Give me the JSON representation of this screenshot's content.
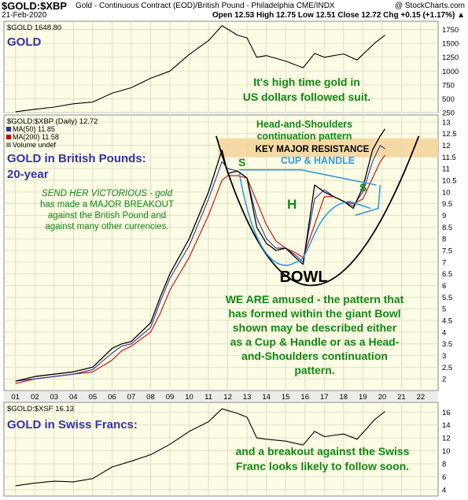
{
  "header": {
    "title": "$GOLD:$XBP",
    "description": "Gold - Continuous Contract (EOD)/British Pound - Philadelphia  CME/INDX",
    "credit": "@ StockCharts.com",
    "date": "21-Feb-2020",
    "ohlc": "Open 12.53  High 12.75  Low 12.51  Close 12.72  Chg +0.15 (+1.17%) ▲"
  },
  "chart_data": [
    {
      "type": "line",
      "legend": "$GOLD 1648.80",
      "title": "GOLD",
      "annotation_lines": [
        "It's high time gold in",
        "US dollars followed suit."
      ],
      "yticks": [
        250,
        500,
        750,
        1000,
        1250,
        1500,
        1750
      ],
      "ylim": [
        250,
        1900
      ],
      "x": [
        2001,
        2002,
        2003,
        2004,
        2005,
        2006,
        2007,
        2008,
        2009,
        2010,
        2011,
        2011.7,
        2012.5,
        2013,
        2013.5,
        2014,
        2015,
        2015.9,
        2016.5,
        2017,
        2018,
        2018.7,
        2019,
        2019.6,
        2020.15
      ],
      "y": [
        265,
        310,
        350,
        410,
        440,
        600,
        700,
        870,
        1000,
        1300,
        1550,
        1820,
        1650,
        1600,
        1250,
        1280,
        1180,
        1060,
        1320,
        1250,
        1310,
        1200,
        1300,
        1500,
        1648
      ]
    },
    {
      "type": "line",
      "legend": [
        "$GOLD:$XBP (Daily) 12.72",
        "MA(50) 11.85",
        "MA(200) 11.58",
        "Volume undef"
      ],
      "title_lines": [
        "GOLD in British Pounds:",
        "20-year"
      ],
      "text_left": [
        "SEND HER VICTORIOUS - gold",
        "has made a MAJOR BREAKOUT",
        "against the British Pound and",
        "against many other currencies."
      ],
      "text_top": [
        "Head-and-Shoulders",
        "continuation pattern"
      ],
      "resistance_label": "KEY MAJOR RESISTANCE",
      "resistance_range": [
        11.5,
        12.3
      ],
      "cup_label": "CUP & HANDLE",
      "s_left_label": "S",
      "h_label": "H",
      "s_right_label": "S",
      "bowl_label": "BOWL",
      "text_bottom": [
        "WE ARE amused - the pattern that",
        "has formed within the giant Bowl",
        "shown may be described either",
        "as a Cup & Handle or as a Head-",
        "and-Shoulders  continuation",
        "pattern."
      ],
      "yticks": [
        2.0,
        2.5,
        3.0,
        3.5,
        4.0,
        4.5,
        5.0,
        5.5,
        6.0,
        6.5,
        7.0,
        7.5,
        8.0,
        8.5,
        9.0,
        9.5,
        10.0,
        10.5,
        11.0,
        11.5,
        12.0,
        12.5,
        13.0
      ],
      "ylim": [
        1.5,
        13.3
      ],
      "x": [
        2001,
        2002,
        2003,
        2004,
        2005,
        2006,
        2006.5,
        2007,
        2008,
        2008.5,
        2009,
        2010,
        2011,
        2011.7,
        2012,
        2012.5,
        2013,
        2013.5,
        2014,
        2014.5,
        2015,
        2015.5,
        2015.9,
        2016.5,
        2017,
        2017.5,
        2018,
        2018.5,
        2019,
        2019.5,
        2019.9,
        2020.15
      ],
      "y": [
        1.9,
        2.1,
        2.2,
        2.3,
        2.5,
        3.3,
        3.5,
        3.6,
        4.4,
        5.5,
        6.5,
        8.0,
        10.0,
        11.8,
        10.8,
        10.9,
        10.6,
        8.5,
        7.8,
        7.5,
        7.6,
        7.2,
        6.9,
        10.3,
        10.0,
        9.8,
        9.6,
        9.3,
        10.2,
        11.8,
        12.4,
        12.7
      ],
      "ma50": [
        1.9,
        2.0,
        2.1,
        2.2,
        2.4,
        3.1,
        3.4,
        3.5,
        4.2,
        5.3,
        6.3,
        7.7,
        9.7,
        11.3,
        11.0,
        10.9,
        10.6,
        8.9,
        8.0,
        7.6,
        7.6,
        7.3,
        7.0,
        9.7,
        10.1,
        9.8,
        9.6,
        9.4,
        10.0,
        11.3,
        12.0,
        11.85
      ],
      "ma200": [
        1.8,
        2.0,
        2.1,
        2.2,
        2.3,
        2.8,
        3.2,
        3.4,
        4.0,
        4.8,
        5.8,
        7.2,
        9.0,
        10.5,
        10.7,
        10.7,
        10.6,
        9.6,
        8.6,
        7.9,
        7.6,
        7.4,
        7.2,
        8.6,
        9.8,
        9.8,
        9.6,
        9.5,
        9.7,
        10.6,
        11.3,
        11.58
      ]
    },
    {
      "type": "line",
      "legend": "$GOLD:$XSF 16.13",
      "title": "GOLD in Swiss Francs:",
      "annotation_lines": [
        "and a breakout against the Swiss",
        "Franc looks likely to follow soon."
      ],
      "yticks": [
        4,
        6,
        8,
        10,
        12,
        14,
        16
      ],
      "ylim": [
        3,
        17.5
      ],
      "x": [
        2001,
        2002,
        2003,
        2004,
        2005,
        2006,
        2007,
        2008,
        2009,
        2010,
        2011,
        2011.7,
        2012.5,
        2013,
        2013.5,
        2014,
        2015,
        2015.9,
        2016.5,
        2017,
        2018,
        2018.7,
        2019,
        2019.6,
        2020.15
      ],
      "y": [
        4.6,
        5.0,
        5.3,
        5.2,
        5.7,
        7.5,
        8.4,
        9.4,
        11.0,
        13.0,
        14.5,
        16.5,
        15.8,
        15.2,
        12.0,
        11.8,
        11.5,
        10.9,
        13.0,
        12.2,
        12.6,
        11.8,
        12.8,
        14.8,
        16.1
      ]
    }
  ],
  "xaxis": {
    "tick_years": [
      2001,
      2002,
      2003,
      2004,
      2005,
      2006,
      2007,
      2008,
      2009,
      2010,
      2011,
      2012,
      2013,
      2014,
      2015,
      2016,
      2017,
      2018,
      2019,
      2020,
      2021,
      2022
    ],
    "tick_labels": [
      "01",
      "02",
      "03",
      "04",
      "05",
      "06",
      "07",
      "08",
      "09",
      "10",
      "11",
      "12",
      "13",
      "14",
      "15",
      "16",
      "17",
      "18",
      "19",
      "20",
      "21",
      "22"
    ],
    "range": [
      2000.4,
      2022.9
    ]
  },
  "colors": {
    "panel_bg": "#fdfde6",
    "grid": "#d9d9c0",
    "price": "#000000",
    "ma50": "#333399",
    "ma200": "#cc0000",
    "title_blue": "#3333aa",
    "text_green": "#118811",
    "resistance_fill": "#f5d49a",
    "cup_line": "#3399dd",
    "bowl_line": "#000000",
    "axis_label_bg": "#ececec"
  }
}
